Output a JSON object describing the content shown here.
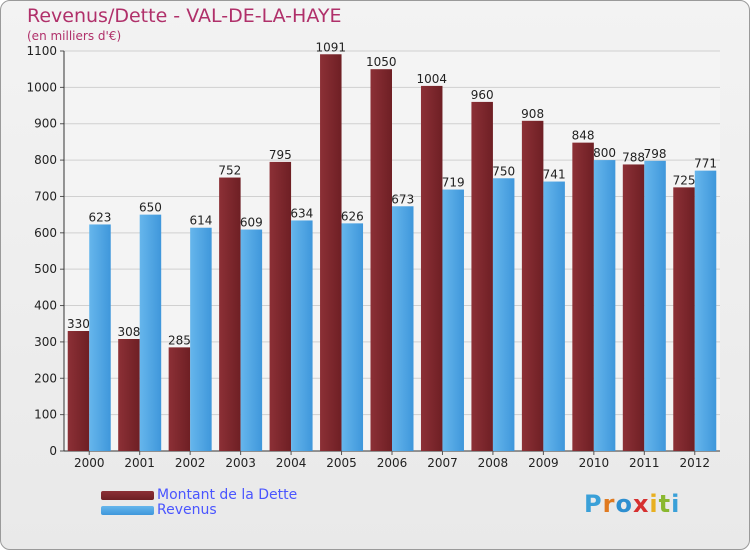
{
  "header": {
    "title": "Revenus/Dette - VAL-DE-LA-HAYE",
    "subtitle": "(en milliers d'€)"
  },
  "legend": {
    "dette_label": "Montant de la Dette",
    "revenus_label": "Revenus"
  },
  "logo": {
    "letters": [
      "P",
      "r",
      "o",
      "x",
      "i",
      "t",
      "i"
    ],
    "colors": [
      "#3aa0d8",
      "#e07a20",
      "#2e8fd0",
      "#d63030",
      "#e8b020",
      "#8ab830",
      "#3aa0d8"
    ]
  },
  "colors": {
    "dette": "#6e1f24",
    "dette_light": "#8c3036",
    "revenus": "#3f97db",
    "revenus_light": "#66b6ec"
  },
  "chart_data": {
    "type": "bar",
    "title": "Revenus/Dette - VAL-DE-LA-HAYE",
    "subtitle": "(en milliers d'€)",
    "categories": [
      "2000",
      "2001",
      "2002",
      "2003",
      "2004",
      "2005",
      "2006",
      "2007",
      "2008",
      "2009",
      "2010",
      "2011",
      "2012"
    ],
    "series": [
      {
        "name": "Montant de la Dette",
        "values": [
          330,
          308,
          285,
          752,
          795,
          1091,
          1050,
          1004,
          960,
          908,
          848,
          788,
          725
        ]
      },
      {
        "name": "Revenus",
        "values": [
          623,
          650,
          614,
          609,
          634,
          626,
          673,
          719,
          750,
          741,
          800,
          798,
          771
        ]
      }
    ],
    "ylim": [
      0,
      1100
    ],
    "yticks": [
      0,
      100,
      200,
      300,
      400,
      500,
      600,
      700,
      800,
      900,
      1000,
      1100
    ],
    "grid": true,
    "legend_position": "bottom-left"
  }
}
